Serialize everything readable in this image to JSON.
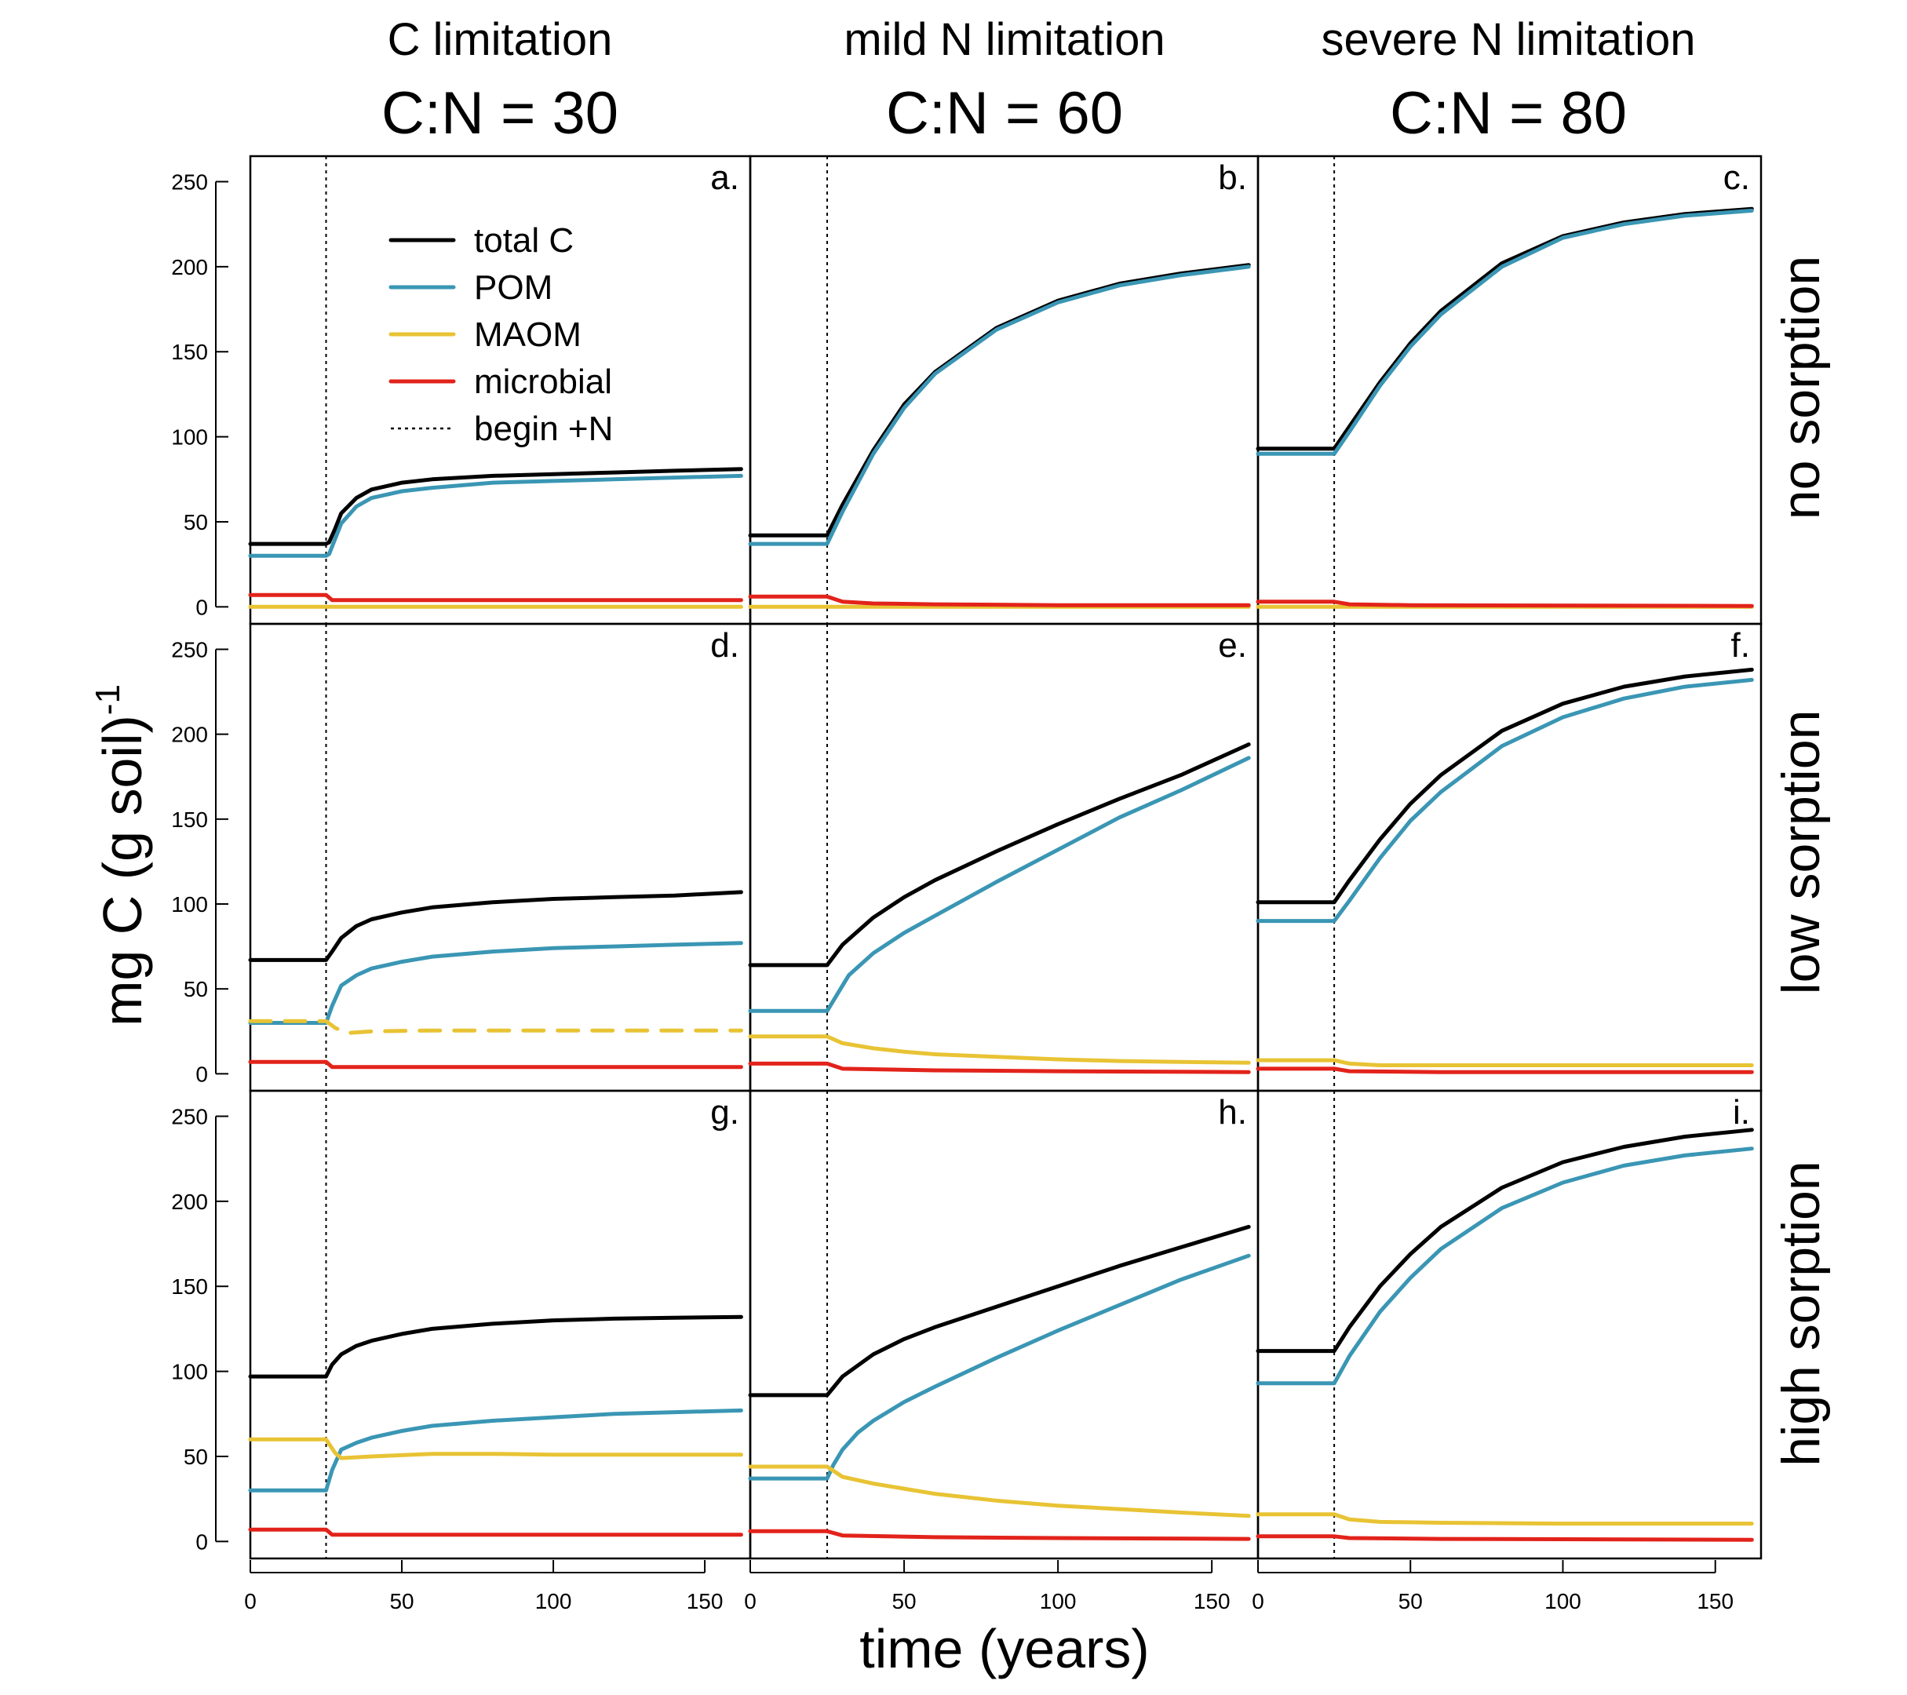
{
  "colors": {
    "total_c": "#000000",
    "pom": "#3a96b4",
    "maom": "#e8c334",
    "microbial": "#e2231b"
  },
  "chart_data": {
    "type": "line",
    "grid": false,
    "shared_ylabel": "mg C (g soil)",
    "shared_ylabel_exponent": "-1",
    "shared_xlabel": "time (years)",
    "xlim": [
      0,
      165
    ],
    "ylim": [
      -10,
      265
    ],
    "x_ticks": [
      0,
      50,
      100,
      150
    ],
    "y_ticks": [
      0,
      50,
      100,
      150,
      200,
      250
    ],
    "vline_x": 25,
    "columns": [
      {
        "title": "C limitation",
        "ratio": "C:N = 30"
      },
      {
        "title": "mild N limitation",
        "ratio": "C:N = 60"
      },
      {
        "title": "severe N limitation",
        "ratio": "C:N = 80"
      }
    ],
    "rows": [
      "no sorption",
      "low sorption",
      "high sorption"
    ],
    "legend": {
      "placement": "top-left of panel a",
      "entries": [
        {
          "label": "total C",
          "key": "total_c",
          "style": "solid"
        },
        {
          "label": "POM",
          "key": "pom",
          "style": "solid"
        },
        {
          "label": "MAOM",
          "key": "maom",
          "style": "solid"
        },
        {
          "label": "microbial",
          "key": "microbial",
          "style": "solid"
        },
        {
          "label": "begin +N",
          "key": "begin_n",
          "style": "dotted"
        }
      ]
    },
    "panels": [
      {
        "letter": "a.",
        "row": 0,
        "col": 0,
        "series": [
          {
            "key": "total_c",
            "x": [
              0,
              25,
              26,
              28,
              30,
              35,
              40,
              50,
              60,
              80,
              100,
              120,
              140,
              162
            ],
            "values": [
              37,
              37,
              38,
              46,
              55,
              64,
              69,
              73,
              75,
              77,
              78,
              79,
              80,
              81
            ]
          },
          {
            "key": "pom",
            "x": [
              0,
              25,
              26,
              28,
              30,
              35,
              40,
              50,
              60,
              80,
              100,
              120,
              140,
              162
            ],
            "values": [
              30,
              30,
              31,
              40,
              49,
              59,
              64,
              68,
              70,
              73,
              74,
              75,
              76,
              77
            ]
          },
          {
            "key": "maom",
            "x": [
              0,
              162
            ],
            "values": [
              0,
              0
            ]
          },
          {
            "key": "microbial",
            "x": [
              0,
              25,
              27,
              30,
              40,
              60,
              100,
              162
            ],
            "values": [
              7,
              7,
              4,
              4,
              4,
              4,
              4,
              4
            ]
          }
        ]
      },
      {
        "letter": "b.",
        "row": 0,
        "col": 1,
        "series": [
          {
            "key": "total_c",
            "x": [
              0,
              25,
              30,
              40,
              50,
              60,
              80,
              100,
              120,
              140,
              162
            ],
            "values": [
              42,
              42,
              60,
              92,
              119,
              138,
              164,
              180,
              190,
              196,
              201
            ]
          },
          {
            "key": "pom",
            "x": [
              0,
              25,
              30,
              40,
              50,
              60,
              80,
              100,
              120,
              140,
              162
            ],
            "values": [
              37,
              37,
              56,
              90,
              117,
              137,
              163,
              179,
              189,
              195,
              200
            ]
          },
          {
            "key": "maom",
            "x": [
              0,
              162
            ],
            "values": [
              0,
              0
            ]
          },
          {
            "key": "microbial",
            "x": [
              0,
              25,
              30,
              40,
              60,
              100,
              162
            ],
            "values": [
              6,
              6,
              3,
              2,
              1.5,
              1,
              1
            ]
          }
        ]
      },
      {
        "letter": "c.",
        "row": 0,
        "col": 2,
        "series": [
          {
            "key": "total_c",
            "x": [
              0,
              25,
              30,
              40,
              50,
              60,
              80,
              100,
              120,
              140,
              162
            ],
            "values": [
              93,
              93,
              106,
              132,
              155,
              174,
              202,
              218,
              226,
              231,
              234
            ]
          },
          {
            "key": "pom",
            "x": [
              0,
              25,
              30,
              40,
              50,
              60,
              80,
              100,
              120,
              140,
              162
            ],
            "values": [
              90,
              90,
              103,
              130,
              153,
              172,
              200,
              217,
              225,
              230,
              233
            ]
          },
          {
            "key": "maom",
            "x": [
              0,
              162
            ],
            "values": [
              0,
              0
            ]
          },
          {
            "key": "microbial",
            "x": [
              0,
              25,
              30,
              50,
              162
            ],
            "values": [
              3,
              3,
              1.5,
              1,
              0.5
            ]
          }
        ]
      },
      {
        "letter": "d.",
        "row": 1,
        "col": 0,
        "series": [
          {
            "key": "total_c",
            "x": [
              0,
              25,
              27,
              30,
              35,
              40,
              50,
              60,
              80,
              100,
              120,
              140,
              162
            ],
            "values": [
              67,
              67,
              72,
              80,
              87,
              91,
              95,
              98,
              101,
              103,
              104,
              105,
              107
            ]
          },
          {
            "key": "pom",
            "x": [
              0,
              25,
              27,
              30,
              35,
              40,
              50,
              60,
              80,
              100,
              120,
              140,
              162
            ],
            "values": [
              30,
              30,
              40,
              52,
              58,
              62,
              66,
              69,
              72,
              74,
              75,
              76,
              77
            ]
          },
          {
            "key": "maom",
            "x": [
              0,
              25,
              28,
              32,
              40,
              60,
              100,
              162
            ],
            "values": [
              31,
              31,
              27,
              24,
              25,
              25.5,
              25.5,
              25.5
            ],
            "style": "dashed"
          },
          {
            "key": "microbial",
            "x": [
              0,
              25,
              27,
              30,
              60,
              100,
              162
            ],
            "values": [
              7,
              7,
              4,
              4,
              4,
              4,
              4
            ]
          }
        ]
      },
      {
        "letter": "e.",
        "row": 1,
        "col": 1,
        "series": [
          {
            "key": "total_c",
            "x": [
              0,
              25,
              30,
              40,
              50,
              60,
              80,
              100,
              120,
              140,
              162
            ],
            "values": [
              64,
              64,
              76,
              92,
              104,
              114,
              131,
              147,
              162,
              176,
              194
            ]
          },
          {
            "key": "pom",
            "x": [
              0,
              25,
              28,
              32,
              40,
              50,
              60,
              80,
              100,
              120,
              140,
              162
            ],
            "values": [
              37,
              37,
              46,
              58,
              71,
              83,
              93,
              113,
              132,
              151,
              167,
              186
            ]
          },
          {
            "key": "maom",
            "x": [
              0,
              25,
              30,
              40,
              50,
              60,
              80,
              100,
              120,
              140,
              162
            ],
            "values": [
              22,
              22,
              18,
              15,
              13,
              11.5,
              10,
              8.5,
              7.5,
              7,
              6.5
            ]
          },
          {
            "key": "microbial",
            "x": [
              0,
              25,
              30,
              60,
              100,
              162
            ],
            "values": [
              6,
              6,
              3,
              2,
              1.5,
              1
            ]
          }
        ]
      },
      {
        "letter": "f.",
        "row": 1,
        "col": 2,
        "series": [
          {
            "key": "total_c",
            "x": [
              0,
              25,
              30,
              40,
              50,
              60,
              80,
              100,
              120,
              140,
              162
            ],
            "values": [
              101,
              101,
              114,
              138,
              159,
              176,
              202,
              218,
              228,
              234,
              238
            ]
          },
          {
            "key": "pom",
            "x": [
              0,
              25,
              30,
              40,
              50,
              60,
              80,
              100,
              120,
              140,
              162
            ],
            "values": [
              90,
              90,
              102,
              127,
              149,
              166,
              193,
              210,
              221,
              228,
              232
            ]
          },
          {
            "key": "maom",
            "x": [
              0,
              25,
              30,
              40,
              60,
              100,
              162
            ],
            "values": [
              8,
              8,
              6,
              5,
              5,
              5,
              5
            ]
          },
          {
            "key": "microbial",
            "x": [
              0,
              25,
              30,
              60,
              162
            ],
            "values": [
              3,
              3,
              1.5,
              1,
              1
            ]
          }
        ]
      },
      {
        "letter": "g.",
        "row": 2,
        "col": 0,
        "series": [
          {
            "key": "total_c",
            "x": [
              0,
              25,
              27,
              30,
              35,
              40,
              50,
              60,
              80,
              100,
              120,
              140,
              162
            ],
            "values": [
              97,
              97,
              104,
              110,
              115,
              118,
              122,
              125,
              128,
              130,
              131,
              131.5,
              132
            ]
          },
          {
            "key": "pom",
            "x": [
              0,
              25,
              27,
              30,
              35,
              40,
              50,
              60,
              80,
              100,
              120,
              140,
              162
            ],
            "values": [
              30,
              30,
              42,
              54,
              58,
              61,
              65,
              68,
              71,
              73,
              75,
              76,
              77
            ]
          },
          {
            "key": "maom",
            "x": [
              0,
              25,
              28,
              30,
              40,
              60,
              80,
              100,
              162
            ],
            "values": [
              60,
              60,
              52,
              49,
              50,
              51.5,
              51.5,
              51,
              51
            ]
          },
          {
            "key": "microbial",
            "x": [
              0,
              25,
              27,
              30,
              60,
              100,
              162
            ],
            "values": [
              7,
              7,
              4,
              4,
              4,
              4,
              4
            ]
          }
        ]
      },
      {
        "letter": "h.",
        "row": 2,
        "col": 1,
        "series": [
          {
            "key": "total_c",
            "x": [
              0,
              25,
              30,
              40,
              50,
              60,
              80,
              100,
              120,
              140,
              162
            ],
            "values": [
              86,
              86,
              97,
              110,
              119,
              126,
              138,
              150,
              162,
              173,
              185
            ]
          },
          {
            "key": "pom",
            "x": [
              0,
              25,
              27,
              30,
              35,
              40,
              50,
              60,
              80,
              100,
              120,
              140,
              162
            ],
            "values": [
              37,
              37,
              45,
              54,
              64,
              71,
              82,
              91,
              108,
              124,
              139,
              154,
              168
            ]
          },
          {
            "key": "maom",
            "x": [
              0,
              25,
              30,
              40,
              50,
              60,
              80,
              100,
              120,
              140,
              162
            ],
            "values": [
              44,
              44,
              38,
              34,
              31,
              28,
              24,
              21,
              19,
              17,
              15
            ]
          },
          {
            "key": "microbial",
            "x": [
              0,
              25,
              30,
              60,
              100,
              162
            ],
            "values": [
              6,
              6,
              3.5,
              2.5,
              2,
              1.5
            ]
          }
        ]
      },
      {
        "letter": "i.",
        "row": 2,
        "col": 2,
        "series": [
          {
            "key": "total_c",
            "x": [
              0,
              25,
              30,
              40,
              50,
              60,
              80,
              100,
              120,
              140,
              162
            ],
            "values": [
              112,
              112,
              126,
              150,
              169,
              185,
              208,
              223,
              232,
              238,
              242
            ]
          },
          {
            "key": "pom",
            "x": [
              0,
              25,
              30,
              40,
              50,
              60,
              80,
              100,
              120,
              140,
              162
            ],
            "values": [
              93,
              93,
              109,
              135,
              155,
              172,
              196,
              211,
              221,
              227,
              231
            ]
          },
          {
            "key": "maom",
            "x": [
              0,
              25,
              30,
              40,
              60,
              100,
              162
            ],
            "values": [
              16,
              16,
              13,
              11.5,
              11,
              10.5,
              10.5
            ]
          },
          {
            "key": "microbial",
            "x": [
              0,
              25,
              30,
              60,
              162
            ],
            "values": [
              3,
              3,
              2,
              1.5,
              1
            ]
          }
        ]
      }
    ]
  }
}
